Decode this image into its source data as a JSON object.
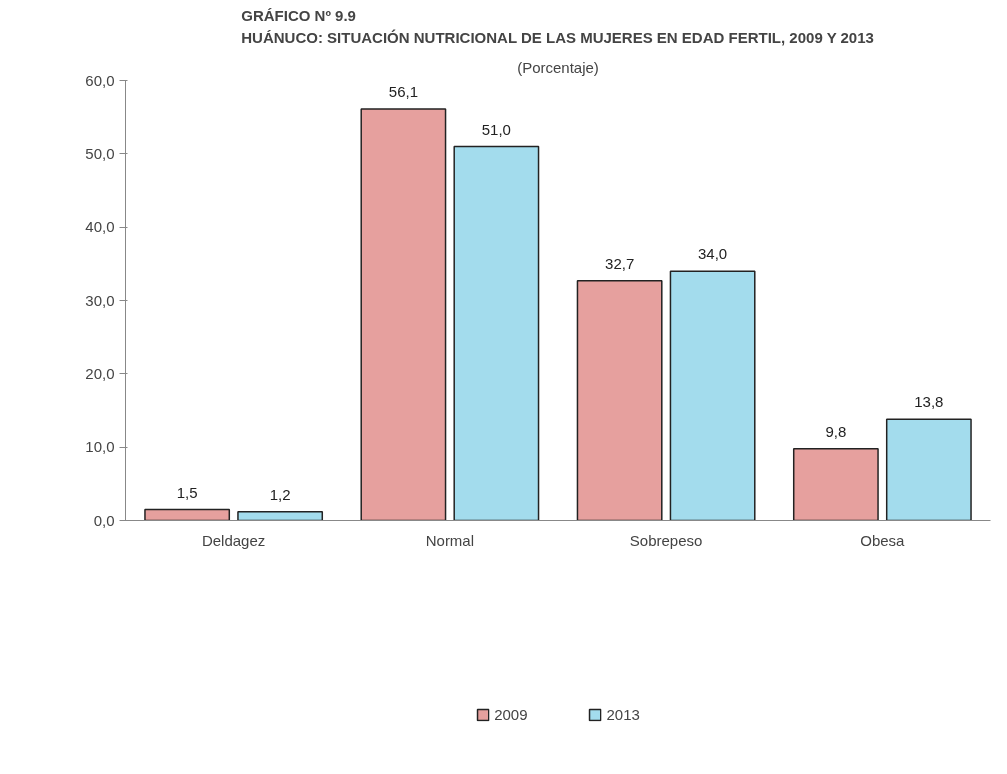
{
  "chart_data": {
    "type": "bar",
    "title": "GRÁFICO Nº 9.9\nHUÁNUCO: SITUACIÓN NUTRICIONAL DE LAS MUJERES EN EDAD FERTIL, 2009 Y 2013",
    "subtitle": "(Porcentaje)",
    "categories": [
      "Deldagez",
      "Normal",
      "Sobrepeso",
      "Obesa"
    ],
    "series": [
      {
        "name": "2009",
        "color": "#e6a09e",
        "values": [
          1.5,
          56.1,
          32.7,
          9.8
        ],
        "value_labels": [
          "1,5",
          "56,1",
          "32,7",
          "9,8"
        ]
      },
      {
        "name": "2013",
        "color": "#a3dced",
        "values": [
          1.2,
          51.0,
          34.0,
          13.8
        ],
        "value_labels": [
          "1,2",
          "51,0",
          "34,0",
          "13,8"
        ]
      }
    ],
    "ylim": [
      0,
      60
    ],
    "yticks": [
      {
        "value": 0,
        "label": "0,0"
      },
      {
        "value": 10,
        "label": "10,0"
      },
      {
        "value": 20,
        "label": "20,0"
      },
      {
        "value": 30,
        "label": "30,0"
      },
      {
        "value": 40,
        "label": "40,0"
      },
      {
        "value": 50,
        "label": "50,0"
      },
      {
        "value": 60,
        "label": "60,0"
      }
    ],
    "grid": false,
    "legend": "bottom"
  }
}
